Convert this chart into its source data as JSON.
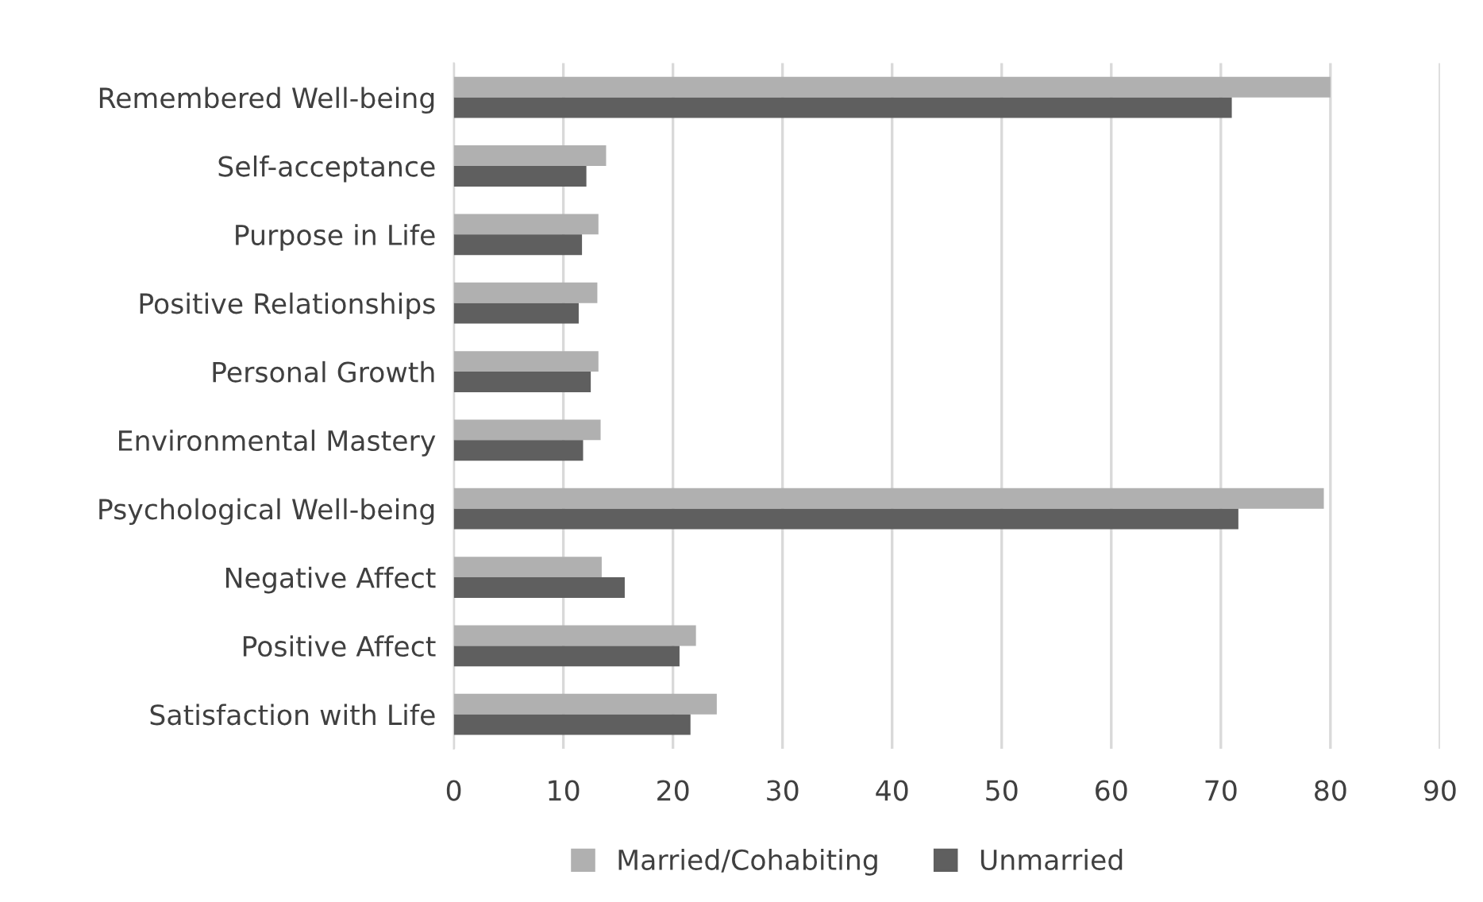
{
  "chart_data": {
    "type": "bar",
    "orientation": "horizontal",
    "categories": [
      "Remembered Well-being",
      "Self-acceptance",
      "Purpose in Life",
      "Positive Relationships",
      "Personal Growth",
      "Environmental Mastery",
      "Psychological Well-being",
      "Negative Affect",
      "Positive Affect",
      "Satisfaction with Life"
    ],
    "series": [
      {
        "name": "Married/Cohabiting",
        "color": "#b0b0b0",
        "values": [
          80.0,
          13.9,
          13.2,
          13.1,
          13.2,
          13.4,
          79.4,
          13.5,
          22.1,
          24.0
        ]
      },
      {
        "name": "Unmarried",
        "color": "#5f5f5f",
        "values": [
          71.0,
          12.1,
          11.7,
          11.4,
          12.5,
          11.8,
          71.6,
          15.6,
          20.6,
          21.6
        ]
      }
    ],
    "xlim": [
      0,
      90
    ],
    "xticks": [
      0,
      10,
      20,
      30,
      40,
      50,
      60,
      70,
      80,
      90
    ],
    "grid": "x",
    "legend": "bottom"
  }
}
